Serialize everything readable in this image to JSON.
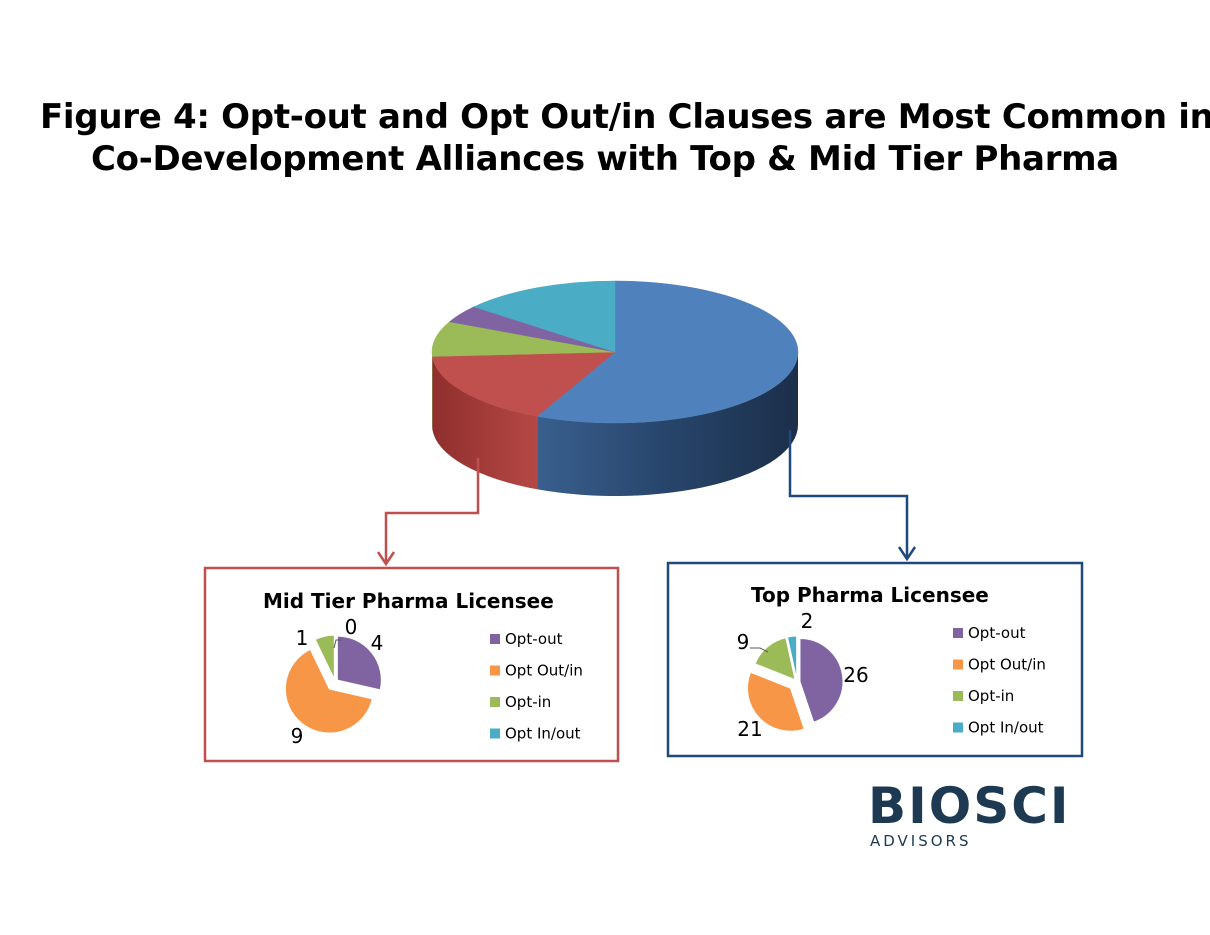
{
  "figure": {
    "title_line1": "Figure 4:  Opt-out and Opt Out/in Clauses are Most Common in",
    "title_line2": "Co-Development Alliances with Top & Mid Tier Pharma"
  },
  "colors": {
    "opt_out": "#8064a2",
    "opt_out_in": "#f79646",
    "opt_in": "#9bbb59",
    "opt_in_out": "#4bacc6",
    "main_blue": "#4f81bd",
    "main_red": "#c0504d",
    "mid_frame": "#c0504d",
    "top_frame": "#1f497d"
  },
  "chart_data": [
    {
      "type": "pie",
      "title": "",
      "style": "3d-exploded",
      "slices": [
        {
          "color": "#4f81bd",
          "share": 0.57
        },
        {
          "color": "#c0504d",
          "share": 0.17
        },
        {
          "color": "#9bbb59",
          "share": 0.08
        },
        {
          "color": "#8064a2",
          "share": 0.04
        },
        {
          "color": "#4bacc6",
          "share": 0.14
        }
      ]
    },
    {
      "type": "pie",
      "title": "Mid Tier Pharma Licensee",
      "legend_position": "right",
      "categories": [
        "Opt-out",
        "Opt Out/in",
        "Opt-in",
        "Opt In/out"
      ],
      "values": [
        4,
        9,
        1,
        0
      ],
      "exploded": "Opt Out/in"
    },
    {
      "type": "pie",
      "title": "Top Pharma Licensee",
      "legend_position": "right",
      "categories": [
        "Opt-out",
        "Opt Out/in",
        "Opt-in",
        "Opt In/out"
      ],
      "values": [
        26,
        21,
        9,
        2
      ],
      "exploded": "Opt Out/in"
    }
  ],
  "logo": {
    "brand": "BIOSCI",
    "sub": "ADVISORS"
  }
}
